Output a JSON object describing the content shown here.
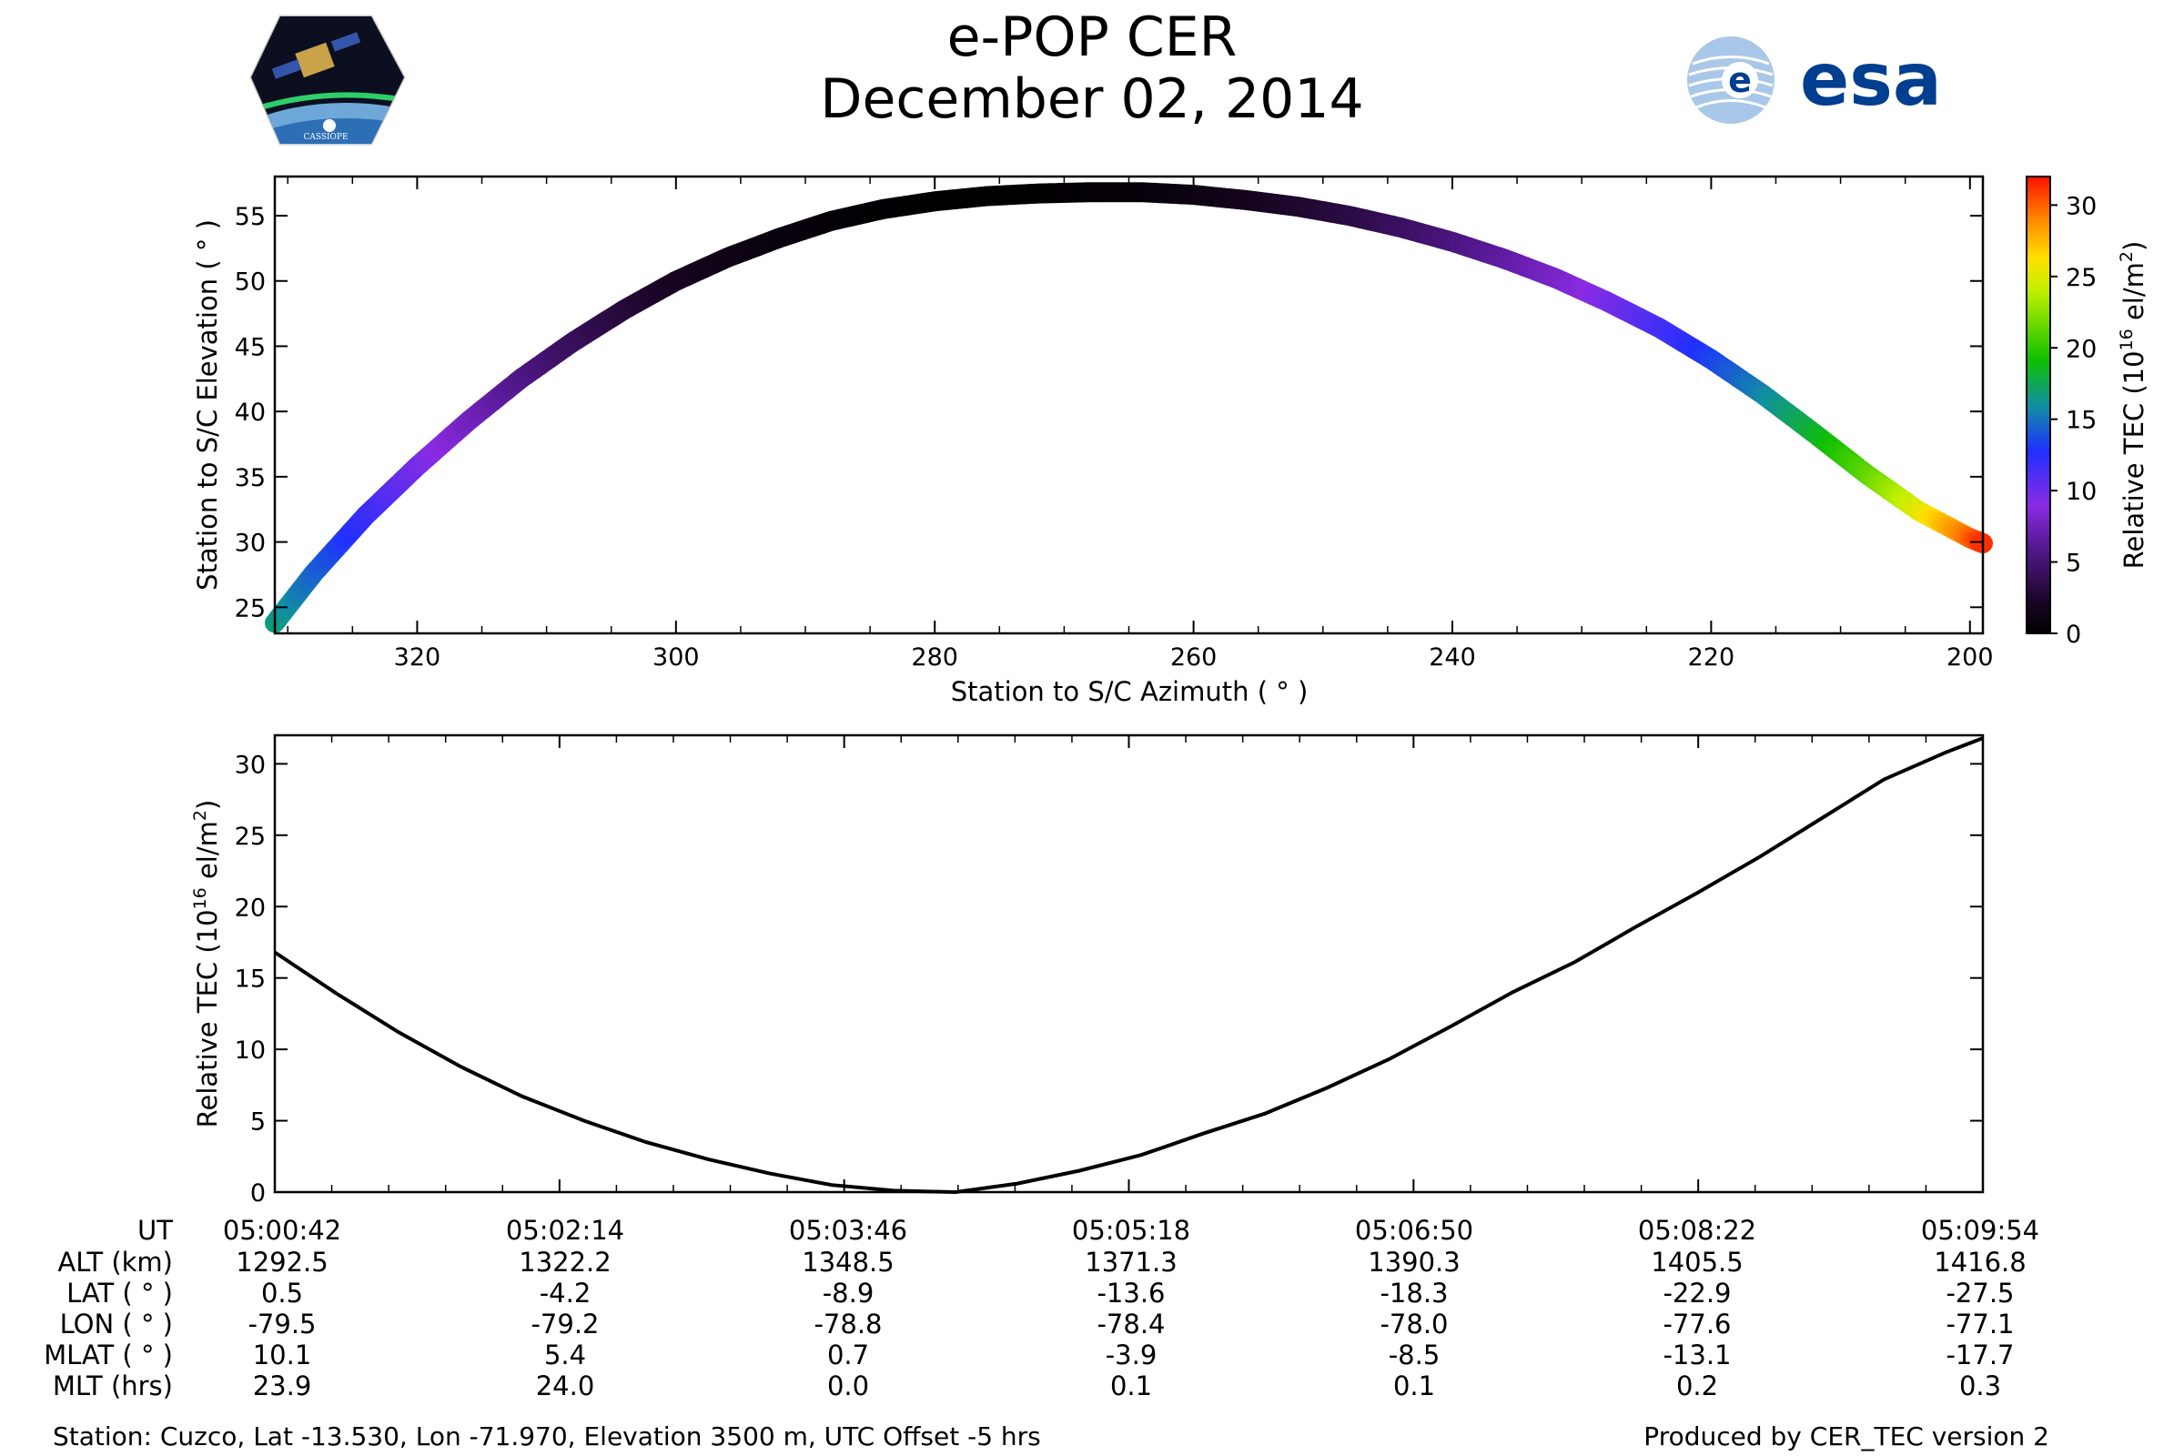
{
  "title": "e-POP CER",
  "subtitle": "December 02, 2014",
  "logos": {
    "left": "cassiope-mission-logo",
    "left_text": "CASSIOPE",
    "right": "esa-logo",
    "right_text": "esa"
  },
  "colorbar": {
    "label_main": "Relative TEC (10",
    "label_exp": "16",
    "label_unit": " el/m",
    "label_unit_exp": "2",
    "label_close": ")",
    "ticks": [
      "0",
      "5",
      "10",
      "15",
      "20",
      "25",
      "30"
    ],
    "range": [
      0,
      32
    ],
    "colormap": "rainbow"
  },
  "chart_data": [
    {
      "type": "scatter",
      "name": "elevation-vs-azimuth",
      "xlabel": "Station to S/C Azimuth ( ° )",
      "ylabel": "Station to S/C Elevation ( ° )",
      "xlim": [
        331,
        199
      ],
      "ylim": [
        23,
        58
      ],
      "x_ticks": [
        "320",
        "300",
        "280",
        "260",
        "240",
        "220",
        "200"
      ],
      "y_ticks": [
        "25",
        "30",
        "35",
        "40",
        "45",
        "50",
        "55"
      ],
      "color_by": "Relative TEC",
      "points": [
        {
          "az": 331,
          "el": 23.8,
          "tec": 16.8
        },
        {
          "az": 328,
          "el": 27.6,
          "tec": 14.6
        },
        {
          "az": 324,
          "el": 32.0,
          "tec": 12.0
        },
        {
          "az": 320,
          "el": 35.8,
          "tec": 9.8
        },
        {
          "az": 316,
          "el": 39.3,
          "tec": 7.8
        },
        {
          "az": 312,
          "el": 42.5,
          "tec": 5.8
        },
        {
          "az": 308,
          "el": 45.3,
          "tec": 4.2
        },
        {
          "az": 304,
          "el": 47.8,
          "tec": 3.0
        },
        {
          "az": 300,
          "el": 50.0,
          "tec": 2.0
        },
        {
          "az": 296,
          "el": 51.8,
          "tec": 1.3
        },
        {
          "az": 292,
          "el": 53.3,
          "tec": 0.8
        },
        {
          "az": 288,
          "el": 54.6,
          "tec": 0.4
        },
        {
          "az": 284,
          "el": 55.5,
          "tec": 0.15
        },
        {
          "az": 280,
          "el": 56.1,
          "tec": 0.05
        },
        {
          "az": 276,
          "el": 56.5,
          "tec": 0.0
        },
        {
          "az": 272,
          "el": 56.7,
          "tec": 0.05
        },
        {
          "az": 268,
          "el": 56.8,
          "tec": 0.2
        },
        {
          "az": 264,
          "el": 56.8,
          "tec": 0.5
        },
        {
          "az": 260,
          "el": 56.6,
          "tec": 1.0
        },
        {
          "az": 256,
          "el": 56.2,
          "tec": 1.6
        },
        {
          "az": 252,
          "el": 55.7,
          "tec": 2.4
        },
        {
          "az": 248,
          "el": 55.0,
          "tec": 3.2
        },
        {
          "az": 244,
          "el": 54.1,
          "tec": 4.2
        },
        {
          "az": 240,
          "el": 53.0,
          "tec": 5.3
        },
        {
          "az": 236,
          "el": 51.7,
          "tec": 6.6
        },
        {
          "az": 232,
          "el": 50.2,
          "tec": 8.0
        },
        {
          "az": 228,
          "el": 48.4,
          "tec": 9.6
        },
        {
          "az": 224,
          "el": 46.4,
          "tec": 11.3
        },
        {
          "az": 220,
          "el": 44.0,
          "tec": 13.3
        },
        {
          "az": 216,
          "el": 41.3,
          "tec": 15.6
        },
        {
          "az": 212,
          "el": 38.3,
          "tec": 18.2
        },
        {
          "az": 208,
          "el": 35.2,
          "tec": 21.2
        },
        {
          "az": 204,
          "el": 32.4,
          "tec": 25.0
        },
        {
          "az": 200,
          "el": 30.3,
          "tec": 29.8
        },
        {
          "az": 199,
          "el": 29.9,
          "tec": 31.2
        }
      ]
    },
    {
      "type": "line",
      "name": "relative-tec-vs-time",
      "xlabel": "",
      "ylabel": "Relative TEC (10^16 el/m^2)",
      "ylim": [
        0,
        32
      ],
      "x_ticks": [
        "05:00:42",
        "05:02:14",
        "05:03:46",
        "05:05:18",
        "05:06:50",
        "05:08:22",
        "05:09:54"
      ],
      "y_ticks": [
        "0",
        "5",
        "10",
        "15",
        "20",
        "25",
        "30"
      ],
      "xlim_seconds_from_first_tick": [
        0,
        552
      ],
      "series": [
        {
          "name": "",
          "t": [
            0,
            20,
            40,
            60,
            80,
            100,
            120,
            140,
            160,
            180,
            200,
            220,
            240,
            260,
            280,
            300,
            320,
            340,
            360,
            380,
            400,
            420,
            440,
            460,
            480,
            500,
            520,
            540,
            552
          ],
          "values": [
            16.8,
            13.9,
            11.2,
            8.8,
            6.7,
            5.0,
            3.5,
            2.3,
            1.3,
            0.5,
            0.1,
            0.0,
            0.6,
            1.5,
            2.6,
            4.1,
            5.5,
            7.3,
            9.3,
            11.6,
            14.0,
            16.1,
            18.6,
            21.0,
            23.5,
            26.2,
            28.9,
            30.8,
            31.8
          ]
        }
      ]
    }
  ],
  "table": {
    "row_labels": [
      "UT",
      "ALT (km)",
      "LAT ( ° )",
      "LON ( ° )",
      "MLAT ( ° )",
      "MLT (hrs)"
    ],
    "columns": [
      [
        "05:00:42",
        "1292.5",
        "0.5",
        "-79.5",
        "10.1",
        "23.9"
      ],
      [
        "05:02:14",
        "1322.2",
        "-4.2",
        "-79.2",
        "5.4",
        "24.0"
      ],
      [
        "05:03:46",
        "1348.5",
        "-8.9",
        "-78.8",
        "0.7",
        "0.0"
      ],
      [
        "05:05:18",
        "1371.3",
        "-13.6",
        "-78.4",
        "-3.9",
        "0.1"
      ],
      [
        "05:06:50",
        "1390.3",
        "-18.3",
        "-78.0",
        "-8.5",
        "0.1"
      ],
      [
        "05:08:22",
        "1405.5",
        "-22.9",
        "-77.6",
        "-13.1",
        "0.2"
      ],
      [
        "05:09:54",
        "1416.8",
        "-27.5",
        "-77.1",
        "-17.7",
        "0.3"
      ]
    ]
  },
  "footer": {
    "station": "Station: Cuzco, Lat -13.530, Lon -71.970, Elevation 3500 m, UTC Offset -5 hrs",
    "produced": "Produced by CER_TEC version 2"
  }
}
